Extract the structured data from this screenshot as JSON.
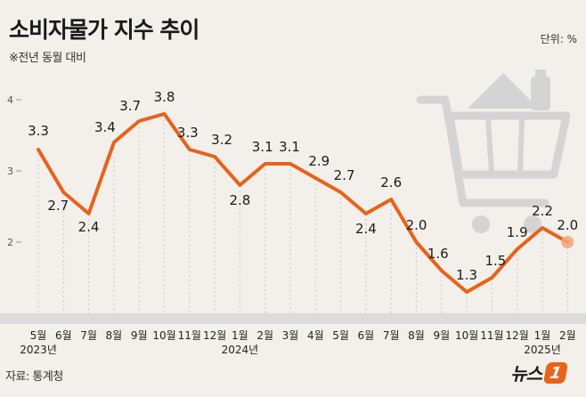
{
  "header": {
    "title": "소비자물가 지수 추이",
    "subtitle": "※전년 동월 대비",
    "unit": "단위: %"
  },
  "footer": {
    "source": "자료: 통계청",
    "logo_text": "뉴스",
    "logo_badge": "1"
  },
  "colors": {
    "line": "#e8621a",
    "background": "#f3f0eb",
    "plot_band": "#dcdcdc",
    "decoration": "#d4d4d4"
  },
  "decoration_icon": "shopping-cart-icon",
  "chart_data": {
    "type": "line",
    "categories": [
      "5월",
      "6월",
      "7월",
      "8월",
      "9월",
      "10월",
      "11월",
      "12월",
      "1월",
      "2월",
      "3월",
      "4월",
      "5월",
      "6월",
      "7월",
      "8월",
      "9월",
      "10월",
      "11월",
      "12월",
      "1월",
      "2월"
    ],
    "year_labels": [
      {
        "index": 0,
        "label": "2023년"
      },
      {
        "index": 8,
        "label": "2024년"
      },
      {
        "index": 20,
        "label": "2025년"
      }
    ],
    "values": [
      3.3,
      2.7,
      2.4,
      3.4,
      3.7,
      3.8,
      3.3,
      3.2,
      2.8,
      3.1,
      3.1,
      2.9,
      2.7,
      2.4,
      2.6,
      2.0,
      1.6,
      1.3,
      1.5,
      1.9,
      2.2,
      2.0
    ],
    "labels": [
      "3.3",
      "2.7",
      "2.4",
      "3.4",
      "3.7",
      "3.8",
      "3.3",
      "3.2",
      "2.8",
      "3.1",
      "3.1",
      "2.9",
      "2.7",
      "2.4",
      "2.6",
      "2.0",
      "1.6",
      "1.3",
      "1.5",
      "1.9",
      "2.2",
      "2.0"
    ],
    "yticks": [
      {
        "value": 4,
        "label": "4"
      },
      {
        "value": 3,
        "label": "3"
      },
      {
        "value": 2,
        "label": "2"
      }
    ],
    "ylim": [
      1.0,
      4.0
    ],
    "grid": "vertical-dotted",
    "legend": "none",
    "xlabel": "",
    "ylabel": ""
  }
}
